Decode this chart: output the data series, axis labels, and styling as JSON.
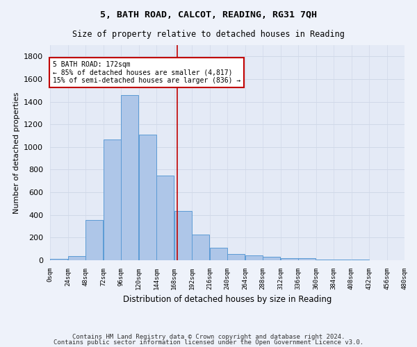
{
  "title": "5, BATH ROAD, CALCOT, READING, RG31 7QH",
  "subtitle": "Size of property relative to detached houses in Reading",
  "xlabel": "Distribution of detached houses by size in Reading",
  "ylabel": "Number of detached properties",
  "footer_line1": "Contains HM Land Registry data © Crown copyright and database right 2024.",
  "footer_line2": "Contains public sector information licensed under the Open Government Licence v3.0.",
  "bin_edges": [
    0,
    24,
    48,
    72,
    96,
    120,
    144,
    168,
    192,
    216,
    240,
    264,
    288,
    312,
    336,
    360,
    384,
    408,
    432,
    456,
    480
  ],
  "bar_heights": [
    10,
    35,
    355,
    1065,
    1460,
    1110,
    745,
    435,
    225,
    110,
    53,
    45,
    30,
    20,
    20,
    5,
    5,
    5,
    2,
    2
  ],
  "bar_color": "#aec6e8",
  "bar_edge_color": "#5b9bd5",
  "grid_color": "#d0d8e8",
  "vline_x": 172,
  "vline_color": "#c00000",
  "annotation_line1": "5 BATH ROAD: 172sqm",
  "annotation_line2": "← 85% of detached houses are smaller (4,817)",
  "annotation_line3": "15% of semi-detached houses are larger (836) →",
  "annotation_box_color": "#c00000",
  "ylim": [
    0,
    1900
  ],
  "yticks": [
    0,
    200,
    400,
    600,
    800,
    1000,
    1200,
    1400,
    1600,
    1800
  ],
  "bg_color": "#eef2fa",
  "plot_bg_color": "#e4eaf6",
  "title_fontsize": 9.5,
  "subtitle_fontsize": 8.5
}
